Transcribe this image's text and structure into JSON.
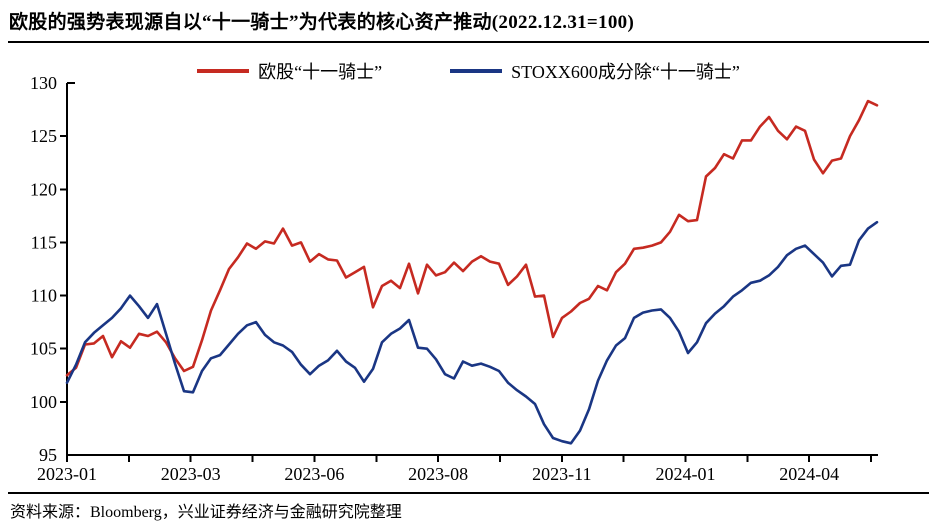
{
  "title": "欧股的强势表现源自以“十一骑士”为代表的核心资产推动(2022.12.31=100)",
  "source_note": "资料来源：Bloomberg，兴业证券经济与金融研究院整理",
  "colors": {
    "series_red": "#C62A21",
    "series_blue": "#1A3684",
    "axis": "#000000"
  },
  "legend": [
    {
      "label": "欧股“十一骑士”",
      "color": "#C62A21"
    },
    {
      "label": "STOXX600成分除“十一骑士”",
      "color": "#1A3684"
    }
  ],
  "chart_data": {
    "type": "line",
    "title": "欧股的强势表现源自以“十一骑士”为代表的核心资产推动(2022.12.31=100)",
    "xlabel": "",
    "ylabel": "",
    "ylim": [
      95,
      130
    ],
    "y_ticks": [
      95,
      100,
      105,
      110,
      115,
      120,
      125,
      130
    ],
    "x_tick_labels": [
      "2023-01",
      "2023-03",
      "2023-06",
      "2023-08",
      "2023-11",
      "2024-01",
      "2024-04"
    ],
    "x_minor_ticks": 14,
    "grid": false,
    "legend_position": "top-center",
    "series": [
      {
        "name": "欧股“十一骑士”",
        "color": "#C62A21",
        "values": [
          102.5,
          103.2,
          105.4,
          105.5,
          106.2,
          104.2,
          105.7,
          105.1,
          106.4,
          106.2,
          106.6,
          105.6,
          104.1,
          102.9,
          103.3,
          105.8,
          108.6,
          110.5,
          112.5,
          113.6,
          114.9,
          114.4,
          115.1,
          114.9,
          116.3,
          114.7,
          115.0,
          113.2,
          113.9,
          113.4,
          113.3,
          111.7,
          112.2,
          112.7,
          108.9,
          110.9,
          111.4,
          110.7,
          113.0,
          110.2,
          112.9,
          111.9,
          112.2,
          113.1,
          112.3,
          113.2,
          113.7,
          113.2,
          113.0,
          111.0,
          111.8,
          112.9,
          109.9,
          110.0,
          106.1,
          107.9,
          108.5,
          109.3,
          109.7,
          110.9,
          110.5,
          112.2,
          113.0,
          114.4,
          114.5,
          114.7,
          115.0,
          116.0,
          117.6,
          117.0,
          117.1,
          121.2,
          122.0,
          123.3,
          122.9,
          124.6,
          124.6,
          125.9,
          126.8,
          125.5,
          124.7,
          125.9,
          125.5,
          122.8,
          121.5,
          122.7,
          122.9,
          125.0,
          126.5,
          128.3,
          127.9
        ]
      },
      {
        "name": "STOXX600成分除“十一骑士”",
        "color": "#1A3684",
        "values": [
          101.8,
          103.5,
          105.6,
          106.5,
          107.2,
          107.9,
          108.8,
          110.0,
          109.0,
          107.9,
          109.2,
          106.4,
          103.6,
          101.0,
          100.9,
          102.9,
          104.1,
          104.4,
          105.4,
          106.4,
          107.2,
          107.5,
          106.3,
          105.6,
          105.3,
          104.7,
          103.5,
          102.6,
          103.4,
          103.9,
          104.8,
          103.8,
          103.2,
          101.9,
          103.1,
          105.6,
          106.4,
          106.9,
          107.7,
          105.1,
          105.0,
          104.0,
          102.6,
          102.2,
          103.8,
          103.4,
          103.6,
          103.3,
          102.9,
          101.8,
          101.1,
          100.5,
          99.8,
          97.9,
          96.6,
          96.3,
          96.1,
          97.3,
          99.3,
          102.0,
          103.9,
          105.3,
          106.0,
          107.9,
          108.4,
          108.6,
          108.7,
          107.9,
          106.6,
          104.6,
          105.6,
          107.4,
          108.3,
          109.0,
          109.9,
          110.5,
          111.2,
          111.4,
          111.9,
          112.7,
          113.8,
          114.4,
          114.7,
          113.9,
          113.1,
          111.8,
          112.8,
          112.9,
          115.2,
          116.3,
          116.9
        ]
      }
    ]
  }
}
